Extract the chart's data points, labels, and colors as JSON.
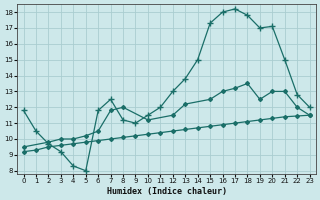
{
  "xlabel": "Humidex (Indice chaleur)",
  "bg_color": "#cde8ea",
  "grid_color": "#aacdd0",
  "line_color": "#1a6e68",
  "xlim": [
    -0.5,
    23.5
  ],
  "ylim": [
    7.8,
    18.5
  ],
  "xticks": [
    0,
    1,
    2,
    3,
    4,
    5,
    6,
    7,
    8,
    9,
    10,
    11,
    12,
    13,
    14,
    15,
    16,
    17,
    18,
    19,
    20,
    21,
    22,
    23
  ],
  "yticks": [
    8,
    9,
    10,
    11,
    12,
    13,
    14,
    15,
    16,
    17,
    18
  ],
  "line1_x": [
    0,
    1,
    2,
    3,
    4,
    5,
    6,
    7,
    8,
    9,
    10,
    11,
    12,
    13,
    14,
    15,
    16,
    17,
    18,
    19,
    20,
    21,
    22,
    23
  ],
  "line1_y": [
    11.8,
    10.5,
    9.7,
    9.2,
    8.3,
    8.0,
    11.8,
    12.5,
    11.2,
    11.0,
    11.5,
    12.0,
    13.0,
    13.8,
    15.0,
    17.3,
    18.0,
    18.2,
    17.8,
    17.0,
    17.1,
    15.0,
    12.8,
    12.0
  ],
  "line2_x": [
    0,
    2,
    3,
    4,
    5,
    6,
    7,
    8,
    10,
    12,
    13,
    15,
    16,
    17,
    18,
    19,
    20,
    21,
    22,
    23
  ],
  "line2_y": [
    9.5,
    9.8,
    10.0,
    10.0,
    10.2,
    10.5,
    11.8,
    12.0,
    11.2,
    11.5,
    12.2,
    12.5,
    13.0,
    13.2,
    13.5,
    12.5,
    13.0,
    13.0,
    12.0,
    11.5
  ],
  "line3_x": [
    0,
    1,
    2,
    3,
    4,
    5,
    6,
    7,
    8,
    9,
    10,
    11,
    12,
    13,
    14,
    15,
    16,
    17,
    18,
    19,
    20,
    21,
    22,
    23
  ],
  "line3_y": [
    9.2,
    9.3,
    9.5,
    9.6,
    9.7,
    9.8,
    9.9,
    10.0,
    10.1,
    10.2,
    10.3,
    10.4,
    10.5,
    10.6,
    10.7,
    10.8,
    10.9,
    11.0,
    11.1,
    11.2,
    11.3,
    11.4,
    11.45,
    11.5
  ]
}
